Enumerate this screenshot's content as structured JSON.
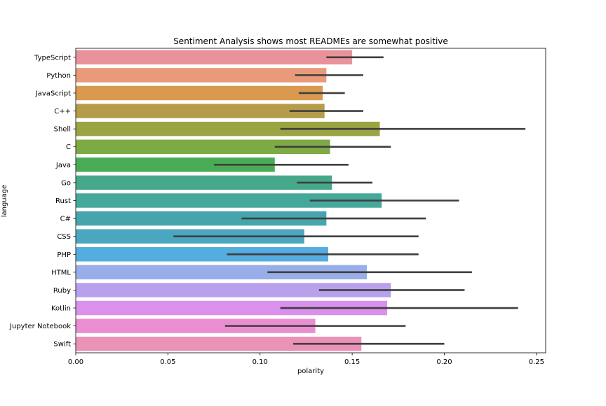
{
  "chart_data": {
    "type": "bar",
    "orientation": "horizontal",
    "title": "Sentiment Analysis shows most READMEs are somewhat positive",
    "xlabel": "polarity",
    "ylabel": "language",
    "xlim": [
      0.0,
      0.255
    ],
    "x_ticks": [
      "0.00",
      "0.05",
      "0.10",
      "0.15",
      "0.20",
      "0.25"
    ],
    "grid": false,
    "legend": "none",
    "error_bar_color": "#3f3f3f",
    "categories": [
      "TypeScript",
      "Python",
      "JavaScript",
      "C++",
      "Shell",
      "C",
      "Java",
      "Go",
      "Rust",
      "C#",
      "CSS",
      "PHP",
      "HTML",
      "Ruby",
      "Kotlin",
      "Jupyter Notebook",
      "Swift"
    ],
    "values": [
      0.15,
      0.136,
      0.134,
      0.135,
      0.165,
      0.138,
      0.108,
      0.139,
      0.166,
      0.136,
      0.124,
      0.137,
      0.158,
      0.171,
      0.169,
      0.13,
      0.155
    ],
    "ci_low": [
      0.136,
      0.119,
      0.121,
      0.116,
      0.111,
      0.108,
      0.075,
      0.12,
      0.127,
      0.09,
      0.053,
      0.082,
      0.104,
      0.132,
      0.111,
      0.081,
      0.118
    ],
    "ci_high": [
      0.167,
      0.156,
      0.146,
      0.156,
      0.244,
      0.171,
      0.148,
      0.161,
      0.208,
      0.19,
      0.186,
      0.186,
      0.215,
      0.211,
      0.24,
      0.179,
      0.2
    ],
    "colors": [
      "#ea929a",
      "#e99a7a",
      "#d99a4f",
      "#b59c4a",
      "#9ba442",
      "#7eaa44",
      "#49ab56",
      "#45a88a",
      "#44a89b",
      "#46a5ac",
      "#4ba6bf",
      "#55ace0",
      "#98aee8",
      "#b9a0ec",
      "#da90ec",
      "#ea8ed1",
      "#eb92b8"
    ]
  }
}
